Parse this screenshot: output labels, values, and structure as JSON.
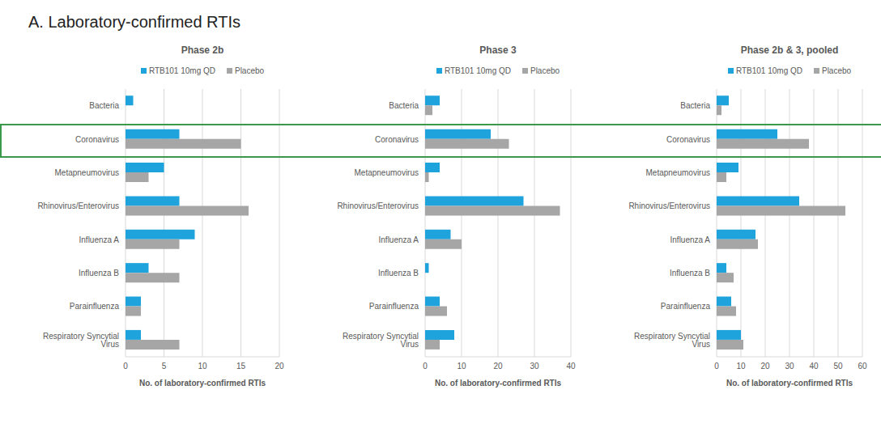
{
  "title": "A. Laboratory-confirmed RTIs",
  "chart_data": [
    {
      "type": "bar",
      "title": "Phase 2b",
      "orientation": "horizontal",
      "grid": true,
      "legend": "top",
      "categories": [
        "Bacteria",
        "Coronavirus",
        "Metapneumovirus",
        "Rhinovirus/Enterovirus",
        "Influenza A",
        "Influenza B",
        "Parainfluenza",
        "Respiratory Syncytial Virus"
      ],
      "series": [
        {
          "name": "RTB101 10mg QD",
          "color": "#1fa3dc",
          "values": [
            1,
            7,
            5,
            7,
            9,
            3,
            2,
            2
          ]
        },
        {
          "name": "Placebo",
          "color": "#a6a6a6",
          "values": [
            0,
            15,
            3,
            16,
            7,
            7,
            2,
            7
          ]
        }
      ],
      "xlim": [
        0,
        20
      ],
      "xticks": [
        0,
        5,
        10,
        15,
        20
      ],
      "xlabel": "No. of laboratory-confirmed RTIs"
    },
    {
      "type": "bar",
      "title": "Phase 3",
      "orientation": "horizontal",
      "grid": true,
      "legend": "top",
      "categories": [
        "Bacteria",
        "Coronavirus",
        "Metapneumovirus",
        "Rhinovirus/Enterovirus",
        "Influenza A",
        "Influenza B",
        "Parainfluenza",
        "Respiratory Syncytial Virus"
      ],
      "series": [
        {
          "name": "RTB101 10mg QD",
          "color": "#1fa3dc",
          "values": [
            4,
            18,
            4,
            27,
            7,
            1,
            4,
            8
          ]
        },
        {
          "name": "Placebo",
          "color": "#a6a6a6",
          "values": [
            2,
            23,
            1,
            37,
            10,
            0,
            6,
            4
          ]
        }
      ],
      "xlim": [
        0,
        40
      ],
      "xticks": [
        0,
        10,
        20,
        30,
        40
      ],
      "xlabel": "No. of laboratory-confirmed RTIs"
    },
    {
      "type": "bar",
      "title": "Phase 2b & 3, pooled",
      "orientation": "horizontal",
      "grid": true,
      "legend": "top",
      "categories": [
        "Bacteria",
        "Coronavirus",
        "Metapneumovirus",
        "Rhinovirus/Enterovirus",
        "Influenza A",
        "Influenza B",
        "Parainfluenza",
        "Respiratory Syncytial Virus"
      ],
      "series": [
        {
          "name": "RTB101 10mg QD",
          "color": "#1fa3dc",
          "values": [
            5,
            25,
            9,
            34,
            16,
            4,
            6,
            10
          ]
        },
        {
          "name": "Placebo",
          "color": "#a6a6a6",
          "values": [
            2,
            38,
            4,
            53,
            17,
            7,
            8,
            11
          ]
        }
      ],
      "xlim": [
        0,
        60
      ],
      "xticks": [
        0,
        10,
        20,
        30,
        40,
        50,
        60
      ],
      "xlabel": "No. of laboratory-confirmed RTIs"
    }
  ]
}
